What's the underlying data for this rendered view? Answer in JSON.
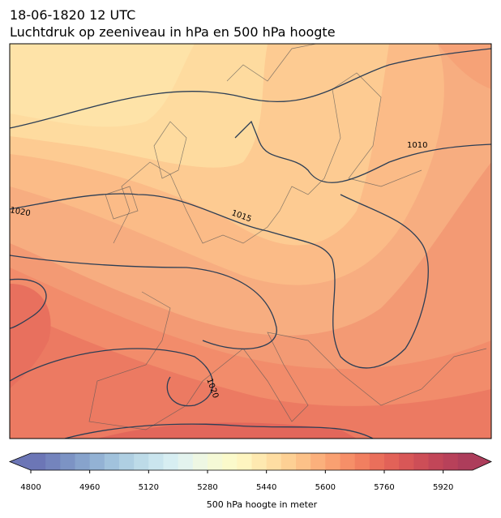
{
  "header": {
    "date": "18-06-1820 12 UTC",
    "title": "Luchtdruk op zeeniveau in hPa en 500 hPa hoogte"
  },
  "map": {
    "isobar_labels": [
      1010,
      1015,
      1020,
      1020
    ]
  },
  "colorbar": {
    "label": "500 hPa hoogte in meter",
    "lim": [
      4800,
      6000
    ],
    "ticks": [
      4800,
      4960,
      5120,
      5280,
      5440,
      5600,
      5760,
      5920
    ],
    "colors": [
      "#6c76b6",
      "#7484bd",
      "#7c93c4",
      "#87a3cc",
      "#93b2d4",
      "#a1c2dc",
      "#afcfe2",
      "#bddbe8",
      "#cae5ee",
      "#d7eef2",
      "#e3f3ee",
      "#eef7e3",
      "#f5f9d6",
      "#fbfacb",
      "#fef5c0",
      "#fee9b0",
      "#fedda2",
      "#fdd094",
      "#fcc188",
      "#fbb07c",
      "#f9a071",
      "#f68f68",
      "#f17f60",
      "#ea6f5b",
      "#e26258",
      "#d85757",
      "#cd4e57",
      "#c24658",
      "#b8415a",
      "#ad3d5b"
    ]
  }
}
